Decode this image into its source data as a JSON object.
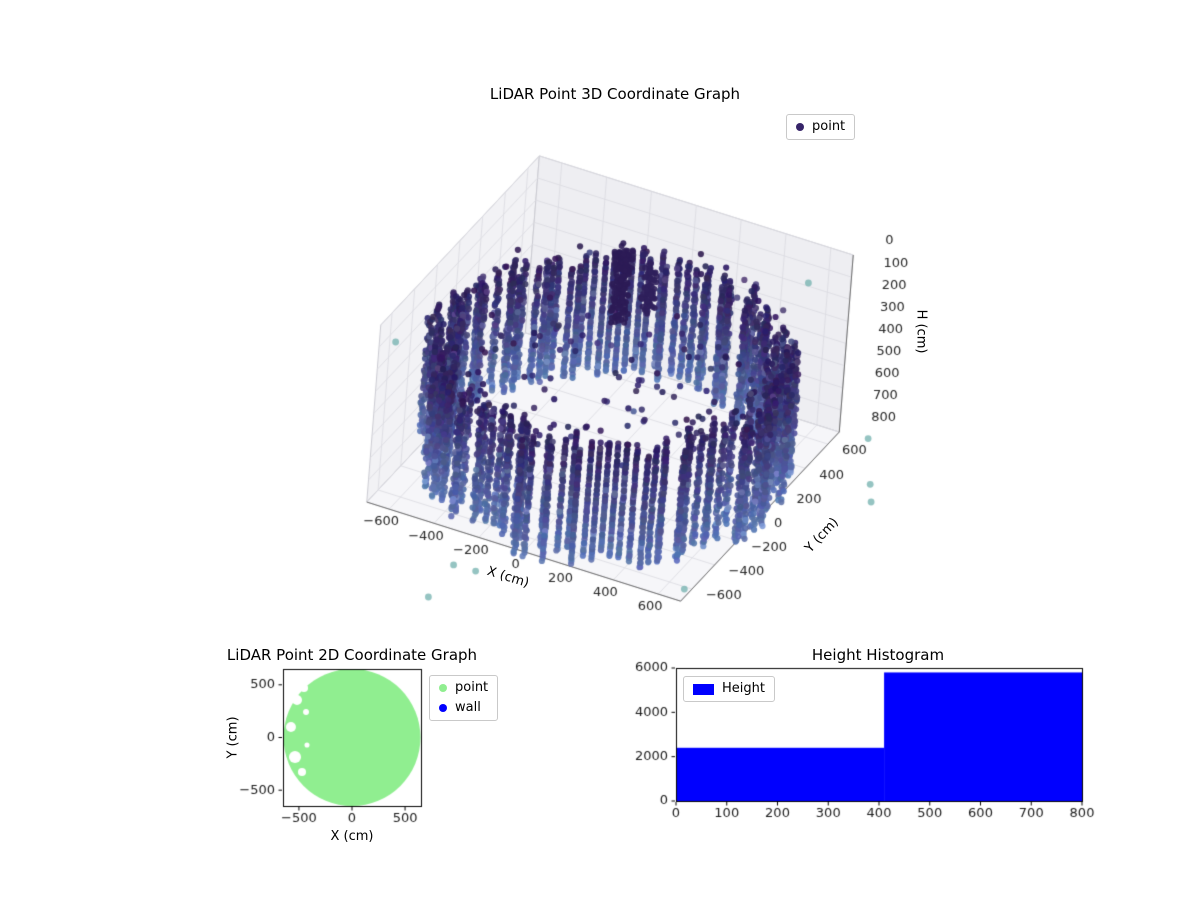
{
  "figure": {
    "background": "#ffffff"
  },
  "chart_data": [
    {
      "id": "lidar-3d",
      "type": "scatter3d",
      "title": "LiDAR Point 3D Coordinate Graph",
      "xlabel": "X (cm)",
      "ylabel": "Y (cm)",
      "zlabel": "H (cm)",
      "xlim": [
        -700,
        700
      ],
      "ylim": [
        -700,
        700
      ],
      "zlim": [
        0,
        800
      ],
      "z_axis_inverted": true,
      "view": {
        "elev": 30,
        "azim": -60
      },
      "grid": true,
      "xticks": {
        "values": [
          -600,
          -400,
          -200,
          0,
          200,
          400,
          600
        ],
        "labels": [
          "−600",
          "−400",
          "−200",
          "0",
          "200",
          "400",
          "600"
        ]
      },
      "yticks": {
        "values": [
          -600,
          -400,
          -200,
          0,
          200,
          400,
          600
        ],
        "labels": [
          "−600",
          "−400",
          "−200",
          "0",
          "200",
          "400",
          "600"
        ]
      },
      "zticks": {
        "values": [
          0,
          100,
          200,
          300,
          400,
          500,
          600,
          700,
          800
        ],
        "labels": [
          "0",
          "100",
          "200",
          "300",
          "400",
          "500",
          "600",
          "700",
          "800"
        ]
      },
      "legend": {
        "location": "upper right",
        "items": [
          {
            "label": "point",
            "marker": "dot",
            "color": "#362469"
          }
        ]
      },
      "point_cloud": {
        "description": "LiDAR returns forming a cylindrical room wall with a sparse upper rim, scattered interior floor returns, a dense vertical pole cluster near the centre and a few distant teal outliers",
        "wall": {
          "radius_cm": [
            620,
            750
          ],
          "height_cm": [
            255,
            790
          ],
          "scan_columns": 118
        },
        "rim_scatter": {
          "count": 70,
          "radius_cm": [
            600,
            740
          ],
          "height_cm": [
            222,
            266
          ]
        },
        "interior_scatter": {
          "count": 95,
          "max_radius_cm": 560,
          "height_cm": [
            300,
            480
          ]
        },
        "pole_cluster": {
          "x_cm": -120,
          "y_cm": 300,
          "height_cm": [
            0,
            345
          ],
          "count": 150
        },
        "side_cluster": {
          "x_cm": -60,
          "y_cm": 430,
          "height_cm": [
            150,
            360
          ],
          "count": 60
        },
        "outliers": {
          "color": "#72b0ad",
          "points_xyh": [
            [
              -790,
              -344,
              300
            ],
            [
              -116,
              -1327,
              700
            ],
            [
              -100,
              -1144,
              650
            ],
            [
              -11,
              -1124,
              660
            ],
            [
              1297,
              -262,
              400
            ],
            [
              1250,
              -180,
              380
            ],
            [
              538,
              648,
              150
            ],
            [
              870,
              -1050,
              500
            ],
            [
              1180,
              -80,
              250
            ]
          ]
        },
        "colormap": {
          "dark_top": "#2d1c5a",
          "light_bottom": "#5a73b2"
        }
      }
    },
    {
      "id": "lidar-2d",
      "type": "scatter",
      "title": "LiDAR Point 2D Coordinate Graph",
      "xlabel": "X (cm)",
      "ylabel": "Y (cm)",
      "xlim": [
        -650,
        650
      ],
      "ylim": [
        -650,
        650
      ],
      "xticks": {
        "values": [
          -500,
          0,
          500
        ],
        "labels": [
          "−500",
          "0",
          "500"
        ]
      },
      "yticks": {
        "values": [
          -500,
          0,
          500
        ],
        "labels": [
          "−500",
          "0",
          "500"
        ]
      },
      "legend": {
        "location": "outside upper right",
        "items": [
          {
            "label": "point",
            "marker": "dot",
            "color": "#90ee90"
          },
          {
            "label": "wall",
            "marker": "dot",
            "color": "#0000ff"
          }
        ]
      },
      "disk": {
        "center_cm": [
          0,
          0
        ],
        "radius_cm": 645,
        "color": "#90ee90",
        "gap_regions_cm": [
          [
            -518,
            356,
            47
          ],
          [
            -575,
            100,
            47
          ],
          [
            -537,
            -185,
            57
          ],
          [
            -471,
            -327,
            38
          ],
          [
            -433,
            242,
            28
          ],
          [
            -452,
            470,
            38
          ],
          [
            -424,
            -71,
            24
          ]
        ]
      }
    },
    {
      "id": "height-histogram",
      "type": "bar",
      "title": "Height Histogram",
      "xlabel": "",
      "ylabel": "",
      "xlim": [
        0,
        800
      ],
      "ylim": [
        0,
        6000
      ],
      "xticks": {
        "values": [
          0,
          100,
          200,
          300,
          400,
          500,
          600,
          700,
          800
        ],
        "labels": [
          "0",
          "100",
          "200",
          "300",
          "400",
          "500",
          "600",
          "700",
          "800"
        ]
      },
      "yticks": {
        "values": [
          0,
          2000,
          4000,
          6000
        ],
        "labels": [
          "0",
          "2000",
          "4000",
          "6000"
        ]
      },
      "legend": {
        "location": "upper left",
        "items": [
          {
            "label": "Height",
            "marker": "rect",
            "color": "#0000ff"
          }
        ]
      },
      "bar_color": "#0000ff",
      "bars": [
        {
          "x_range": [
            0,
            410
          ],
          "count": 2400
        },
        {
          "x_range": [
            410,
            800
          ],
          "count": 5800
        }
      ]
    }
  ]
}
